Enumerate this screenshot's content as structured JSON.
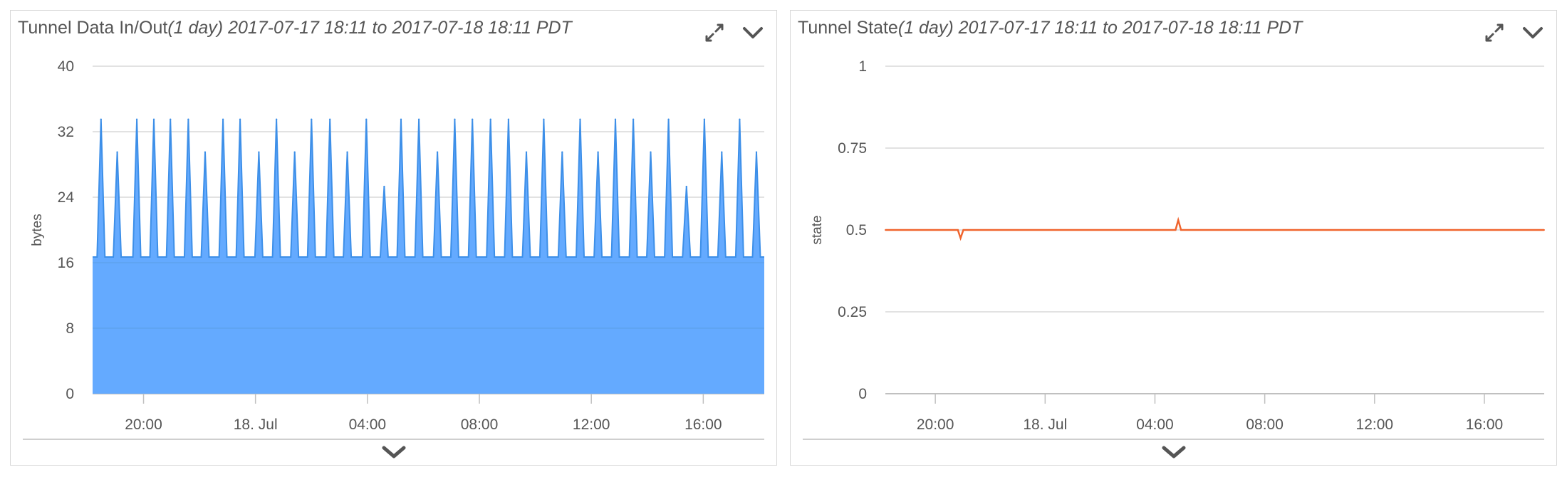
{
  "panels": [
    {
      "title_prefix": "Tunnel Data In/Out",
      "title_italic": "(1 day) 2017-07-17 18:11 to 2017-07-18 18:11 PDT",
      "chart_data": {
        "type": "area",
        "ylabel": "bytes",
        "xlabel": "",
        "y_ticks": [
          "0",
          "8",
          "16",
          "24",
          "32",
          "40"
        ],
        "ylim": [
          0,
          40
        ],
        "x_ticks": [
          "20:00",
          "18. Jul",
          "04:00",
          "08:00",
          "12:00",
          "16:00"
        ],
        "x_tick_hours": [
          20,
          24,
          28,
          32,
          36,
          40
        ],
        "xlim_hours": [
          18.18,
          42.18
        ],
        "baseline": 16.7,
        "series": [
          {
            "color": "#64aaff",
            "line_color": "#3d8fe8",
            "spikes": [
              {
                "t": 18.48,
                "v": 33.5
              },
              {
                "t": 19.06,
                "v": 29.5
              },
              {
                "t": 19.76,
                "v": 33.5
              },
              {
                "t": 20.37,
                "v": 33.5
              },
              {
                "t": 20.96,
                "v": 33.5
              },
              {
                "t": 21.6,
                "v": 33.5
              },
              {
                "t": 22.2,
                "v": 29.5
              },
              {
                "t": 22.84,
                "v": 33.5
              },
              {
                "t": 23.45,
                "v": 33.5
              },
              {
                "t": 24.12,
                "v": 29.5
              },
              {
                "t": 24.75,
                "v": 33.5
              },
              {
                "t": 25.4,
                "v": 29.5
              },
              {
                "t": 26.0,
                "v": 33.5
              },
              {
                "t": 26.66,
                "v": 33.5
              },
              {
                "t": 27.28,
                "v": 29.5
              },
              {
                "t": 27.96,
                "v": 33.5
              },
              {
                "t": 28.6,
                "v": 25.3
              },
              {
                "t": 29.2,
                "v": 33.5
              },
              {
                "t": 29.84,
                "v": 33.5
              },
              {
                "t": 30.5,
                "v": 29.5
              },
              {
                "t": 31.12,
                "v": 33.5
              },
              {
                "t": 31.75,
                "v": 33.5
              },
              {
                "t": 32.4,
                "v": 33.5
              },
              {
                "t": 33.04,
                "v": 33.5
              },
              {
                "t": 33.68,
                "v": 29.5
              },
              {
                "t": 34.3,
                "v": 33.5
              },
              {
                "t": 34.96,
                "v": 29.5
              },
              {
                "t": 35.6,
                "v": 33.5
              },
              {
                "t": 36.24,
                "v": 29.5
              },
              {
                "t": 36.86,
                "v": 33.5
              },
              {
                "t": 37.5,
                "v": 33.5
              },
              {
                "t": 38.12,
                "v": 29.5
              },
              {
                "t": 38.76,
                "v": 33.5
              },
              {
                "t": 39.4,
                "v": 25.3
              },
              {
                "t": 40.04,
                "v": 33.5
              },
              {
                "t": 40.66,
                "v": 29.5
              },
              {
                "t": 41.3,
                "v": 33.5
              },
              {
                "t": 41.9,
                "v": 29.5
              }
            ]
          }
        ]
      }
    },
    {
      "title_prefix": "Tunnel State",
      "title_italic": "(1 day) 2017-07-17 18:11 to 2017-07-18 18:11 PDT",
      "chart_data": {
        "type": "line",
        "ylabel": "state",
        "xlabel": "",
        "y_ticks": [
          "0",
          "0.25",
          "0.5",
          "0.75",
          "1"
        ],
        "y_tick_values": [
          0,
          0.25,
          0.5,
          0.75,
          1
        ],
        "ylim": [
          0,
          1
        ],
        "x_ticks": [
          "20:00",
          "18. Jul",
          "04:00",
          "08:00",
          "12:00",
          "16:00"
        ],
        "x_tick_hours": [
          20,
          24,
          28,
          32,
          36,
          40
        ],
        "xlim_hours": [
          18.18,
          42.18
        ],
        "series": [
          {
            "color": "#f0642d",
            "points": [
              {
                "t": 18.18,
                "v": 0.5
              },
              {
                "t": 20.82,
                "v": 0.5
              },
              {
                "t": 20.92,
                "v": 0.475
              },
              {
                "t": 21.02,
                "v": 0.5
              },
              {
                "t": 28.75,
                "v": 0.5
              },
              {
                "t": 28.85,
                "v": 0.53
              },
              {
                "t": 28.95,
                "v": 0.5
              },
              {
                "t": 42.18,
                "v": 0.5
              }
            ]
          }
        ]
      }
    }
  ],
  "colors": {
    "grid": "#d9d9d9",
    "axis": "#c0c0c0",
    "icon": "#555555"
  }
}
